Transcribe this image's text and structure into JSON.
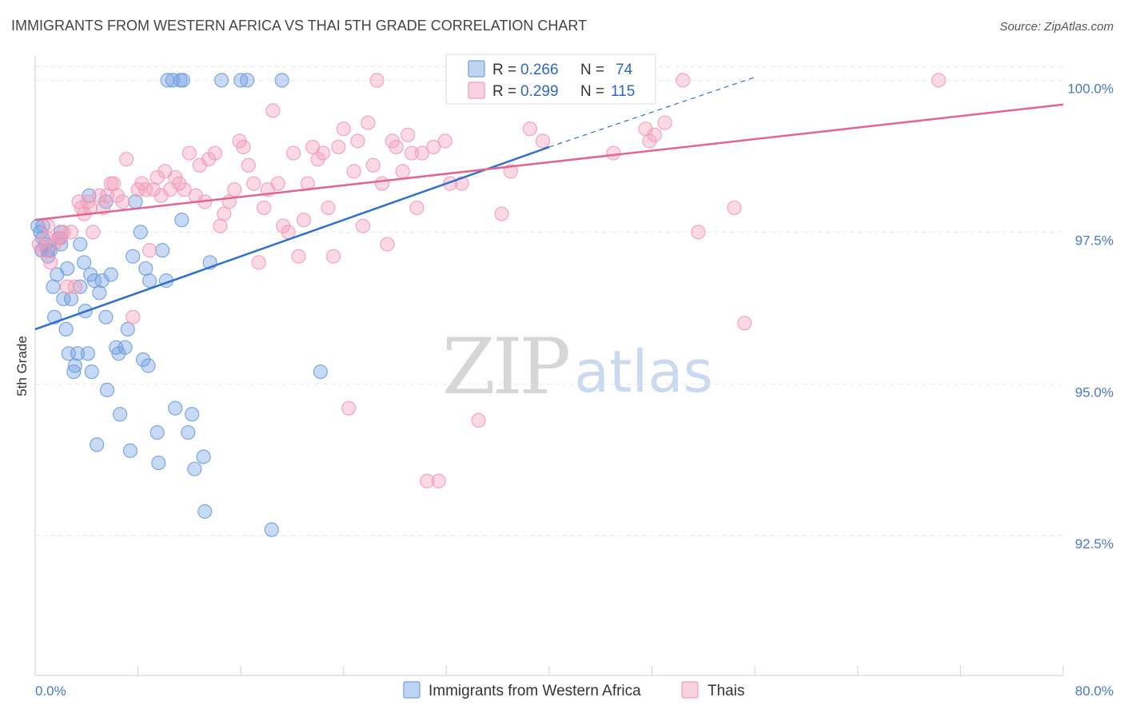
{
  "chart_data": {
    "type": "scatter",
    "title": "IMMIGRANTS FROM WESTERN AFRICA VS THAI 5TH GRADE CORRELATION CHART",
    "source": "Source: ZipAtlas.com",
    "ylabel": "5th Grade",
    "xlim": [
      0,
      80
    ],
    "ylim": [
      90.2,
      100.4
    ],
    "x_tick_labels": [
      "0.0%",
      "80.0%"
    ],
    "y_ticks": [
      92.5,
      95.0,
      97.5,
      100.0
    ],
    "y_tick_labels": [
      "92.5%",
      "95.0%",
      "97.5%",
      "100.0%"
    ],
    "grid": true,
    "legend_position": "top-center",
    "watermark": {
      "zip": "ZIP",
      "atlas": "atlas"
    },
    "series": [
      {
        "name": "Immigrants from Western Africa",
        "color": "#6f9fe0",
        "line_color": "#2f6fd1",
        "r_label": "R =",
        "r_value": "0.266",
        "n_label": "N =",
        "n_value": "74",
        "trend": {
          "x0": 0,
          "y0": 95.9,
          "x1": 40,
          "y1": 98.9,
          "dash_x1": 56,
          "dash_y1": 100.05
        },
        "points": [
          [
            0.2,
            97.6
          ],
          [
            0.4,
            97.5
          ],
          [
            0.5,
            97.2
          ],
          [
            0.6,
            97.4
          ],
          [
            0.8,
            97.3
          ],
          [
            1.0,
            97.1
          ],
          [
            1.2,
            97.2
          ],
          [
            1.4,
            96.6
          ],
          [
            1.5,
            96.1
          ],
          [
            1.7,
            96.8
          ],
          [
            1.9,
            97.4
          ],
          [
            2.0,
            97.3
          ],
          [
            2.2,
            96.4
          ],
          [
            2.4,
            95.9
          ],
          [
            2.5,
            96.9
          ],
          [
            2.6,
            95.5
          ],
          [
            2.8,
            96.4
          ],
          [
            3.0,
            95.2
          ],
          [
            3.1,
            95.3
          ],
          [
            3.3,
            95.5
          ],
          [
            3.5,
            96.6
          ],
          [
            3.8,
            97.0
          ],
          [
            3.9,
            96.2
          ],
          [
            4.1,
            95.5
          ],
          [
            4.3,
            96.8
          ],
          [
            4.4,
            95.2
          ],
          [
            4.6,
            96.7
          ],
          [
            4.8,
            94.0
          ],
          [
            5.0,
            96.5
          ],
          [
            5.2,
            96.7
          ],
          [
            5.5,
            96.1
          ],
          [
            5.6,
            94.9
          ],
          [
            5.9,
            96.8
          ],
          [
            6.3,
            95.6
          ],
          [
            6.5,
            95.5
          ],
          [
            6.6,
            94.5
          ],
          [
            7.0,
            95.6
          ],
          [
            7.2,
            95.9
          ],
          [
            7.4,
            93.9
          ],
          [
            7.6,
            97.1
          ],
          [
            7.8,
            98.0
          ],
          [
            8.2,
            97.5
          ],
          [
            8.4,
            95.4
          ],
          [
            8.6,
            96.9
          ],
          [
            8.8,
            95.3
          ],
          [
            8.9,
            96.7
          ],
          [
            9.5,
            94.2
          ],
          [
            9.6,
            93.7
          ],
          [
            9.9,
            97.2
          ],
          [
            10.2,
            96.7
          ],
          [
            10.3,
            100.0
          ],
          [
            10.7,
            100.0
          ],
          [
            10.9,
            94.6
          ],
          [
            11.3,
            100.0
          ],
          [
            11.4,
            97.7
          ],
          [
            11.5,
            100.0
          ],
          [
            11.9,
            94.2
          ],
          [
            12.2,
            94.5
          ],
          [
            12.4,
            93.6
          ],
          [
            13.1,
            93.8
          ],
          [
            13.2,
            92.9
          ],
          [
            13.6,
            97.0
          ],
          [
            14.5,
            100.0
          ],
          [
            16.0,
            100.0
          ],
          [
            16.5,
            100.0
          ],
          [
            18.4,
            92.6
          ],
          [
            19.2,
            100.0
          ],
          [
            22.2,
            95.2
          ],
          [
            4.2,
            98.1
          ],
          [
            1.0,
            97.2
          ],
          [
            0.6,
            97.6
          ],
          [
            5.5,
            98.0
          ],
          [
            3.5,
            97.3
          ],
          [
            2.0,
            97.5
          ]
        ]
      },
      {
        "name": "Thais",
        "color": "#f29bb9",
        "line_color": "#e3658f",
        "r_label": "R =",
        "r_value": "0.299",
        "n_label": "N =",
        "n_value": "115",
        "trend": {
          "x0": 0,
          "y0": 97.7,
          "x1": 80,
          "y1": 99.6
        },
        "points": [
          [
            0.3,
            97.3
          ],
          [
            0.6,
            97.2
          ],
          [
            0.9,
            97.4
          ],
          [
            1.2,
            97.0
          ],
          [
            1.5,
            97.3
          ],
          [
            1.8,
            97.4
          ],
          [
            2.2,
            97.5
          ],
          [
            2.5,
            96.6
          ],
          [
            2.8,
            97.5
          ],
          [
            3.1,
            96.6
          ],
          [
            3.4,
            98.0
          ],
          [
            3.6,
            97.9
          ],
          [
            3.8,
            97.8
          ],
          [
            4.1,
            98.0
          ],
          [
            4.3,
            97.9
          ],
          [
            4.5,
            97.5
          ],
          [
            5.0,
            98.1
          ],
          [
            5.3,
            97.9
          ],
          [
            5.6,
            98.1
          ],
          [
            5.9,
            98.3
          ],
          [
            6.1,
            98.3
          ],
          [
            6.4,
            98.1
          ],
          [
            6.8,
            98.0
          ],
          [
            7.1,
            98.7
          ],
          [
            7.6,
            96.1
          ],
          [
            8.0,
            98.2
          ],
          [
            8.3,
            98.3
          ],
          [
            8.6,
            98.2
          ],
          [
            8.9,
            97.2
          ],
          [
            9.2,
            98.2
          ],
          [
            9.5,
            98.4
          ],
          [
            9.8,
            98.1
          ],
          [
            10.1,
            98.5
          ],
          [
            10.5,
            98.2
          ],
          [
            10.9,
            98.4
          ],
          [
            11.2,
            98.3
          ],
          [
            11.6,
            98.2
          ],
          [
            12.0,
            98.8
          ],
          [
            12.5,
            98.1
          ],
          [
            12.8,
            98.6
          ],
          [
            13.2,
            98.0
          ],
          [
            13.5,
            98.7
          ],
          [
            14.0,
            98.8
          ],
          [
            14.4,
            97.6
          ],
          [
            14.7,
            97.8
          ],
          [
            15.1,
            98.0
          ],
          [
            15.5,
            98.2
          ],
          [
            15.9,
            99.0
          ],
          [
            16.2,
            98.9
          ],
          [
            16.6,
            98.6
          ],
          [
            17.0,
            98.3
          ],
          [
            17.4,
            97.0
          ],
          [
            17.8,
            97.9
          ],
          [
            18.1,
            98.2
          ],
          [
            18.5,
            99.5
          ],
          [
            18.9,
            98.3
          ],
          [
            19.3,
            97.6
          ],
          [
            19.7,
            97.5
          ],
          [
            20.1,
            98.8
          ],
          [
            20.5,
            97.1
          ],
          [
            20.9,
            97.7
          ],
          [
            21.2,
            98.3
          ],
          [
            21.6,
            98.9
          ],
          [
            22.0,
            98.7
          ],
          [
            22.4,
            98.8
          ],
          [
            22.8,
            97.9
          ],
          [
            23.2,
            97.1
          ],
          [
            23.6,
            98.9
          ],
          [
            24.0,
            99.2
          ],
          [
            24.4,
            94.6
          ],
          [
            24.8,
            98.5
          ],
          [
            25.1,
            99.0
          ],
          [
            25.5,
            97.6
          ],
          [
            25.9,
            99.3
          ],
          [
            26.3,
            98.6
          ],
          [
            26.6,
            100.0
          ],
          [
            27.0,
            98.3
          ],
          [
            27.4,
            97.3
          ],
          [
            27.8,
            99.0
          ],
          [
            28.1,
            98.9
          ],
          [
            28.6,
            98.5
          ],
          [
            29.0,
            99.1
          ],
          [
            29.3,
            98.8
          ],
          [
            29.7,
            97.9
          ],
          [
            30.1,
            98.8
          ],
          [
            30.5,
            93.4
          ],
          [
            31.0,
            98.9
          ],
          [
            31.4,
            93.4
          ],
          [
            31.9,
            99.0
          ],
          [
            32.3,
            98.3
          ],
          [
            32.8,
            100.0
          ],
          [
            33.2,
            98.3
          ],
          [
            34.0,
            99.8
          ],
          [
            34.5,
            94.4
          ],
          [
            35.1,
            100.0
          ],
          [
            35.6,
            99.9
          ],
          [
            36.3,
            97.8
          ],
          [
            37.0,
            98.5
          ],
          [
            37.8,
            100.0
          ],
          [
            38.5,
            99.2
          ],
          [
            39.5,
            99.0
          ],
          [
            41.0,
            100.0
          ],
          [
            43.3,
            100.0
          ],
          [
            45.0,
            98.8
          ],
          [
            47.8,
            99.0
          ],
          [
            47.5,
            99.2
          ],
          [
            48.2,
            99.1
          ],
          [
            49.0,
            99.3
          ],
          [
            50.4,
            100.0
          ],
          [
            51.6,
            97.5
          ],
          [
            54.4,
            97.9
          ],
          [
            55.2,
            96.0
          ],
          [
            70.3,
            100.0
          ],
          [
            1.0,
            97.6
          ],
          [
            2.0,
            97.4
          ]
        ]
      }
    ]
  }
}
